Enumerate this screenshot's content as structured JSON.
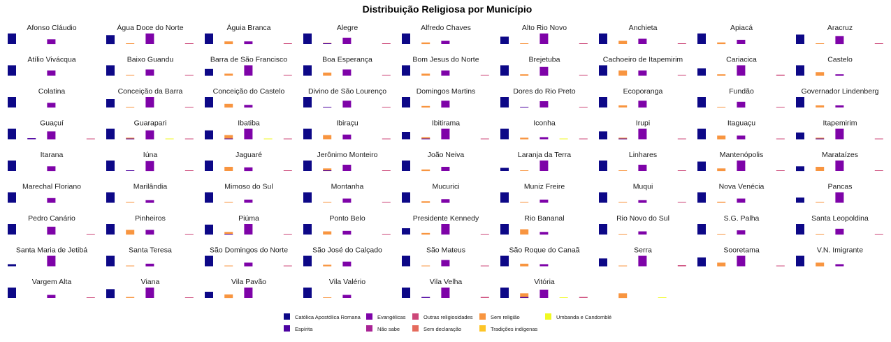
{
  "chart_data": {
    "type": "bar",
    "title": "Distribuição Religiosa por Município",
    "xlabel": "",
    "ylabel": "",
    "layout": "facet-grid",
    "facet_columns": 9,
    "grid": false,
    "legend_position": "bottom",
    "scales": "free",
    "categories": [
      "Católica Apostólica Romana",
      "Espírita",
      "Evangélicas",
      "Não sabe",
      "Outras religiosidades",
      "Sem declaração",
      "Sem religião",
      "Tradições indígenas",
      "Umbanda e Candomblé"
    ],
    "colors": [
      "#0d0887",
      "#4c02a1",
      "#7e03a8",
      "#a92395",
      "#cc4778",
      "#e56b5d",
      "#f89540",
      "#fdc527",
      "#f0f921"
    ],
    "legend_order": [
      [
        "Católica Apostólica Romana",
        "Espírita"
      ],
      [
        "Evangélicas",
        "Não sabe"
      ],
      [
        "Outras religiosidades",
        "Sem declaração"
      ],
      [
        "Sem religião",
        "Tradições indígenas"
      ],
      [
        "Umbanda e Candomblé"
      ]
    ],
    "series": [
      {
        "municipio": "Afonso Cláudio",
        "values": [
          1.0,
          0,
          0.45,
          0,
          0,
          0,
          0.05,
          0,
          0
        ]
      },
      {
        "municipio": "Água Doce do Norte",
        "values": [
          0.85,
          0,
          1.0,
          0,
          0.05,
          0,
          0.25,
          0,
          0
        ]
      },
      {
        "municipio": "Águia Branca",
        "values": [
          1.0,
          0,
          0.25,
          0,
          0.05,
          0,
          0.1,
          0,
          0
        ]
      },
      {
        "municipio": "Alegre",
        "values": [
          1.0,
          0.05,
          0.6,
          0,
          0.05,
          0,
          0.15,
          0,
          0
        ]
      },
      {
        "municipio": "Alfredo Chaves",
        "values": [
          1.0,
          0,
          0.3,
          0,
          0,
          0,
          0.05,
          0,
          0
        ]
      },
      {
        "municipio": "Alto Rio Novo",
        "values": [
          0.7,
          0,
          1.0,
          0,
          0.05,
          0,
          0.3,
          0,
          0
        ]
      },
      {
        "municipio": "Anchieta",
        "values": [
          1.0,
          0,
          0.5,
          0,
          0.05,
          0,
          0.15,
          0,
          0
        ]
      },
      {
        "municipio": "Apiacá",
        "values": [
          1.0,
          0,
          0.4,
          0,
          0,
          0,
          0.05,
          0,
          0
        ]
      },
      {
        "municipio": "Aracruz",
        "values": [
          0.9,
          0,
          0.75,
          0,
          0.05,
          0,
          0.3,
          0,
          0
        ]
      },
      {
        "municipio": "Atílio Vivácqua",
        "values": [
          1.0,
          0,
          0.5,
          0,
          0,
          0,
          0.05,
          0,
          0
        ]
      },
      {
        "municipio": "Baixo Guandu",
        "values": [
          1.0,
          0,
          0.6,
          0,
          0.05,
          0,
          0.2,
          0,
          0
        ]
      },
      {
        "municipio": "Barra de São Francisco",
        "values": [
          0.65,
          0,
          1.0,
          0,
          0.05,
          0,
          0.3,
          0,
          0
        ]
      },
      {
        "municipio": "Boa Esperança",
        "values": [
          1.0,
          0,
          0.6,
          0,
          0.05,
          0,
          0.2,
          0,
          0
        ]
      },
      {
        "municipio": "Bom Jesus do Norte",
        "values": [
          1.0,
          0,
          0.5,
          0,
          0.05,
          0,
          0.15,
          0,
          0
        ]
      },
      {
        "municipio": "Brejetuba",
        "values": [
          1.0,
          0,
          0.85,
          0,
          0.05,
          0,
          0.5,
          0,
          0
        ]
      },
      {
        "municipio": "Cachoeiro de Itapemirim",
        "values": [
          1.0,
          0,
          0.5,
          0,
          0.05,
          0,
          0.15,
          0,
          0
        ]
      },
      {
        "municipio": "Cariacica",
        "values": [
          0.7,
          0,
          1.0,
          0,
          0.1,
          0,
          0.35,
          0,
          0
        ]
      },
      {
        "municipio": "Castelo",
        "values": [
          1.0,
          0,
          0.15,
          0,
          0,
          0,
          0.05,
          0,
          0
        ]
      },
      {
        "municipio": "Colatina",
        "values": [
          1.0,
          0,
          0.45,
          0,
          0,
          0,
          0.05,
          0,
          0
        ]
      },
      {
        "municipio": "Conceição da Barra",
        "values": [
          0.8,
          0,
          1.0,
          0,
          0.05,
          0,
          0.35,
          0,
          0
        ]
      },
      {
        "municipio": "Conceição do Castelo",
        "values": [
          1.0,
          0,
          0.25,
          0,
          0,
          0,
          0.05,
          0,
          0
        ]
      },
      {
        "municipio": "Divino de São Lourenço",
        "values": [
          1.0,
          0.05,
          0.65,
          0,
          0.05,
          0,
          0.15,
          0,
          0
        ]
      },
      {
        "municipio": "Domingos Martins",
        "values": [
          1.0,
          0,
          0.65,
          0,
          0,
          0,
          0.05,
          0,
          0
        ]
      },
      {
        "municipio": "Dores do Rio Preto",
        "values": [
          1.0,
          0.05,
          0.6,
          0,
          0.05,
          0,
          0.2,
          0,
          0
        ]
      },
      {
        "municipio": "Ecoporanga",
        "values": [
          1.0,
          0,
          0.65,
          0,
          0,
          0,
          0.05,
          0,
          0
        ]
      },
      {
        "municipio": "Fundão",
        "values": [
          1.0,
          0,
          0.55,
          0,
          0.05,
          0,
          0.2,
          0,
          0
        ]
      },
      {
        "municipio": "Governador Lindenberg",
        "values": [
          1.0,
          0,
          0.2,
          0,
          0,
          0,
          0.05,
          0,
          0
        ]
      },
      {
        "municipio": "Guaçuí",
        "values": [
          1.0,
          0.1,
          0.75,
          0,
          0.05,
          0,
          0.15,
          0,
          0.05
        ]
      },
      {
        "municipio": "Guarapari",
        "values": [
          1.0,
          0.05,
          0.85,
          0,
          0.05,
          0,
          0.4,
          0,
          0.05
        ]
      },
      {
        "municipio": "Ibatiba",
        "values": [
          0.85,
          0.05,
          1.0,
          0,
          0.05,
          0,
          0.4,
          0,
          0
        ]
      },
      {
        "municipio": "Ibiraçu",
        "values": [
          1.0,
          0,
          0.45,
          0,
          0.05,
          0,
          0.2,
          0,
          0
        ]
      },
      {
        "municipio": "Ibitirama",
        "values": [
          0.7,
          0.05,
          1.0,
          0,
          0.05,
          0,
          0.15,
          0,
          0.05
        ]
      },
      {
        "municipio": "Iconha",
        "values": [
          1.0,
          0,
          0.2,
          0,
          0.05,
          0,
          0.15,
          0,
          0
        ]
      },
      {
        "municipio": "Irupi",
        "values": [
          0.75,
          0.05,
          1.0,
          0,
          0.05,
          0,
          0.35,
          0,
          0
        ]
      },
      {
        "municipio": "Itaguaçu",
        "values": [
          1.0,
          0,
          0.35,
          0,
          0.05,
          0,
          0.15,
          0,
          0
        ]
      },
      {
        "municipio": "Itapemirim",
        "values": [
          0.65,
          0.05,
          1.0,
          0,
          0.05,
          0,
          0.35,
          0,
          0
        ]
      },
      {
        "municipio": "Itarana",
        "values": [
          1.0,
          0,
          0.45,
          0,
          0,
          0,
          0.05,
          0,
          0
        ]
      },
      {
        "municipio": "Iúna",
        "values": [
          1.0,
          0.05,
          0.95,
          0,
          0.05,
          0,
          0.4,
          0,
          0
        ]
      },
      {
        "municipio": "Jaguaré",
        "values": [
          1.0,
          0,
          0.35,
          0,
          0.05,
          0,
          0.25,
          0,
          0
        ]
      },
      {
        "municipio": "Jerônimo Monteiro",
        "values": [
          1.0,
          0.05,
          0.6,
          0,
          0.05,
          0,
          0.15,
          0,
          0
        ]
      },
      {
        "municipio": "João Neiva",
        "values": [
          1.0,
          0,
          0.4,
          0,
          0,
          0,
          0.05,
          0,
          0
        ]
      },
      {
        "municipio": "Laranja da Terra",
        "values": [
          0.3,
          0,
          1.0,
          0,
          0,
          0,
          0.05,
          0,
          0
        ]
      },
      {
        "municipio": "Linhares",
        "values": [
          1.0,
          0,
          0.6,
          0,
          0.05,
          0,
          0.25,
          0,
          0
        ]
      },
      {
        "municipio": "Mantenópolis",
        "values": [
          0.9,
          0,
          1.0,
          0,
          0.05,
          0,
          0.4,
          0,
          0
        ]
      },
      {
        "municipio": "Marataízes",
        "values": [
          0.45,
          0,
          1.0,
          0,
          0.05,
          0,
          0.35,
          0,
          0
        ]
      },
      {
        "municipio": "Marechal Floriano",
        "values": [
          1.0,
          0,
          0.45,
          0,
          0,
          0,
          0.05,
          0,
          0
        ]
      },
      {
        "municipio": "Marilândia",
        "values": [
          1.0,
          0,
          0.25,
          0,
          0,
          0,
          0.05,
          0,
          0
        ]
      },
      {
        "municipio": "Mimoso do Sul",
        "values": [
          1.0,
          0,
          0.3,
          0,
          0,
          0,
          0.05,
          0,
          0
        ]
      },
      {
        "municipio": "Montanha",
        "values": [
          1.0,
          0,
          0.4,
          0,
          0.05,
          0,
          0.15,
          0,
          0
        ]
      },
      {
        "municipio": "Mucurici",
        "values": [
          1.0,
          0,
          0.35,
          0,
          0,
          0,
          0.05,
          0,
          0
        ]
      },
      {
        "municipio": "Muniz Freire",
        "values": [
          1.0,
          0,
          0.3,
          0,
          0,
          0,
          0.05,
          0,
          0
        ]
      },
      {
        "municipio": "Muqui",
        "values": [
          1.0,
          0,
          0.25,
          0,
          0.05,
          0,
          0.1,
          0,
          0
        ]
      },
      {
        "municipio": "Nova Venécia",
        "values": [
          1.0,
          0,
          0.4,
          0,
          0,
          0,
          0.05,
          0,
          0
        ]
      },
      {
        "municipio": "Pancas",
        "values": [
          0.5,
          0,
          1.0,
          0,
          0,
          0,
          0.05,
          0,
          0
        ]
      },
      {
        "municipio": "Pedro Canário",
        "values": [
          1.0,
          0,
          0.75,
          0,
          0.05,
          0,
          0.45,
          0,
          0
        ]
      },
      {
        "municipio": "Pinheiros",
        "values": [
          1.0,
          0,
          0.45,
          0,
          0.05,
          0,
          0.25,
          0,
          0
        ]
      },
      {
        "municipio": "Piúma",
        "values": [
          0.95,
          0.05,
          1.0,
          0,
          0.05,
          0,
          0.3,
          0,
          0
        ]
      },
      {
        "municipio": "Ponto Belo",
        "values": [
          1.0,
          0,
          0.35,
          0,
          0.05,
          0,
          0.15,
          0,
          0
        ]
      },
      {
        "municipio": "Presidente Kennedy",
        "values": [
          0.6,
          0,
          1.0,
          0,
          0.05,
          0,
          0.5,
          0,
          0
        ]
      },
      {
        "municipio": "Rio Bananal",
        "values": [
          1.0,
          0,
          0.25,
          0,
          0,
          0,
          0.05,
          0,
          0
        ]
      },
      {
        "municipio": "Rio Novo do Sul",
        "values": [
          1.0,
          0,
          0.3,
          0,
          0,
          0,
          0.05,
          0,
          0
        ]
      },
      {
        "municipio": "S.G. Palha",
        "values": [
          1.0,
          0,
          0.4,
          0,
          0,
          0,
          0.05,
          0,
          0
        ]
      },
      {
        "municipio": "Santa Leopoldina",
        "values": [
          1.0,
          0,
          0.55,
          0,
          0.05,
          0,
          0.2,
          0,
          0
        ]
      },
      {
        "municipio": "Santa Maria de Jetibá",
        "values": [
          0.2,
          0,
          1.0,
          0,
          0,
          0,
          0.05,
          0,
          0
        ]
      },
      {
        "municipio": "Santa Teresa",
        "values": [
          1.0,
          0,
          0.25,
          0,
          0,
          0,
          0.05,
          0,
          0
        ]
      },
      {
        "municipio": "São Domingos do Norte",
        "values": [
          1.0,
          0,
          0.35,
          0,
          0.05,
          0,
          0.15,
          0,
          0
        ]
      },
      {
        "municipio": "São José do Calçado",
        "values": [
          1.0,
          0,
          0.45,
          0,
          0,
          0,
          0.05,
          0,
          0
        ]
      },
      {
        "municipio": "São Mateus",
        "values": [
          1.0,
          0,
          0.6,
          0,
          0.05,
          0,
          0.25,
          0,
          0
        ]
      },
      {
        "municipio": "São Roque do Canaã",
        "values": [
          1.0,
          0,
          0.2,
          0,
          0,
          0,
          0.05,
          0,
          0
        ]
      },
      {
        "municipio": "Serra",
        "values": [
          0.75,
          0,
          1.0,
          0,
          0.1,
          0,
          0.35,
          0,
          0
        ]
      },
      {
        "municipio": "Sooretama",
        "values": [
          0.85,
          0,
          1.0,
          0,
          0.05,
          0,
          0.35,
          0,
          0
        ]
      },
      {
        "municipio": "V.N. Imigrante",
        "values": [
          1.0,
          0,
          0.2,
          0,
          0,
          0,
          0.05,
          0,
          0
        ]
      },
      {
        "municipio": "Vargem Alta",
        "values": [
          1.0,
          0,
          0.3,
          0,
          0.05,
          0,
          0.1,
          0,
          0
        ]
      },
      {
        "municipio": "Viana",
        "values": [
          0.85,
          0,
          1.0,
          0,
          0.05,
          0,
          0.35,
          0,
          0
        ]
      },
      {
        "municipio": "Vila Pavão",
        "values": [
          0.6,
          0,
          1.0,
          0,
          0,
          0,
          0.05,
          0,
          0
        ]
      },
      {
        "municipio": "Vila Valério",
        "values": [
          1.0,
          0,
          0.3,
          0,
          0,
          0,
          0.05,
          0,
          0
        ]
      },
      {
        "municipio": "Vila Velha",
        "values": [
          1.0,
          0.1,
          1.0,
          0,
          0.1,
          0,
          0.45,
          0,
          0.05
        ]
      },
      {
        "municipio": "Vitória",
        "values": [
          1.0,
          0.1,
          0.8,
          0,
          0.1,
          0,
          0.45,
          0,
          0.05
        ]
      }
    ]
  }
}
